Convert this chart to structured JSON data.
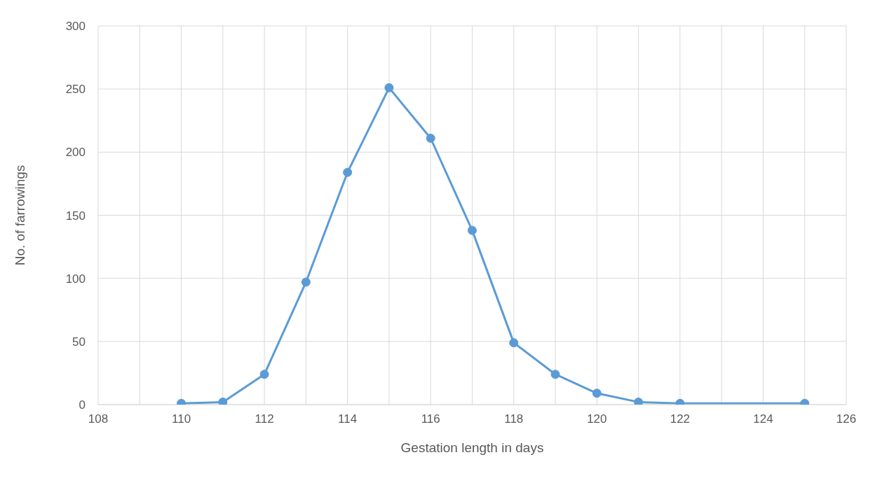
{
  "chart_data": {
    "type": "line",
    "xlabel": "Gestation length in days",
    "ylabel": "No. of farrowings",
    "x": [
      110,
      111,
      112,
      113,
      114,
      115,
      116,
      117,
      118,
      119,
      120,
      121,
      122,
      125
    ],
    "series": [
      {
        "color": "#5b9bd5",
        "values": [
          1,
          2,
          24,
          97,
          184,
          251,
          211,
          138,
          49,
          24,
          9,
          2,
          1,
          1
        ]
      }
    ],
    "xlim": [
      108,
      126
    ],
    "xticks": [
      108,
      {
        "value": 109,
        "label": null
      },
      110,
      {
        "value": 111,
        "label": null
      },
      112,
      {
        "value": 113,
        "label": null
      },
      114,
      {
        "value": 115,
        "label": null
      },
      116,
      {
        "value": 117,
        "label": null
      },
      118,
      {
        "value": 119,
        "label": null
      },
      120,
      {
        "value": 121,
        "label": null
      },
      122,
      {
        "value": 123,
        "label": null
      },
      124,
      {
        "value": 125,
        "label": null
      },
      126
    ],
    "ylim": [
      0,
      300
    ],
    "yticks": [
      0,
      50,
      100,
      150,
      200,
      250,
      300
    ],
    "grid": true,
    "marker": "circle",
    "line_style": "solid",
    "legend": false
  }
}
